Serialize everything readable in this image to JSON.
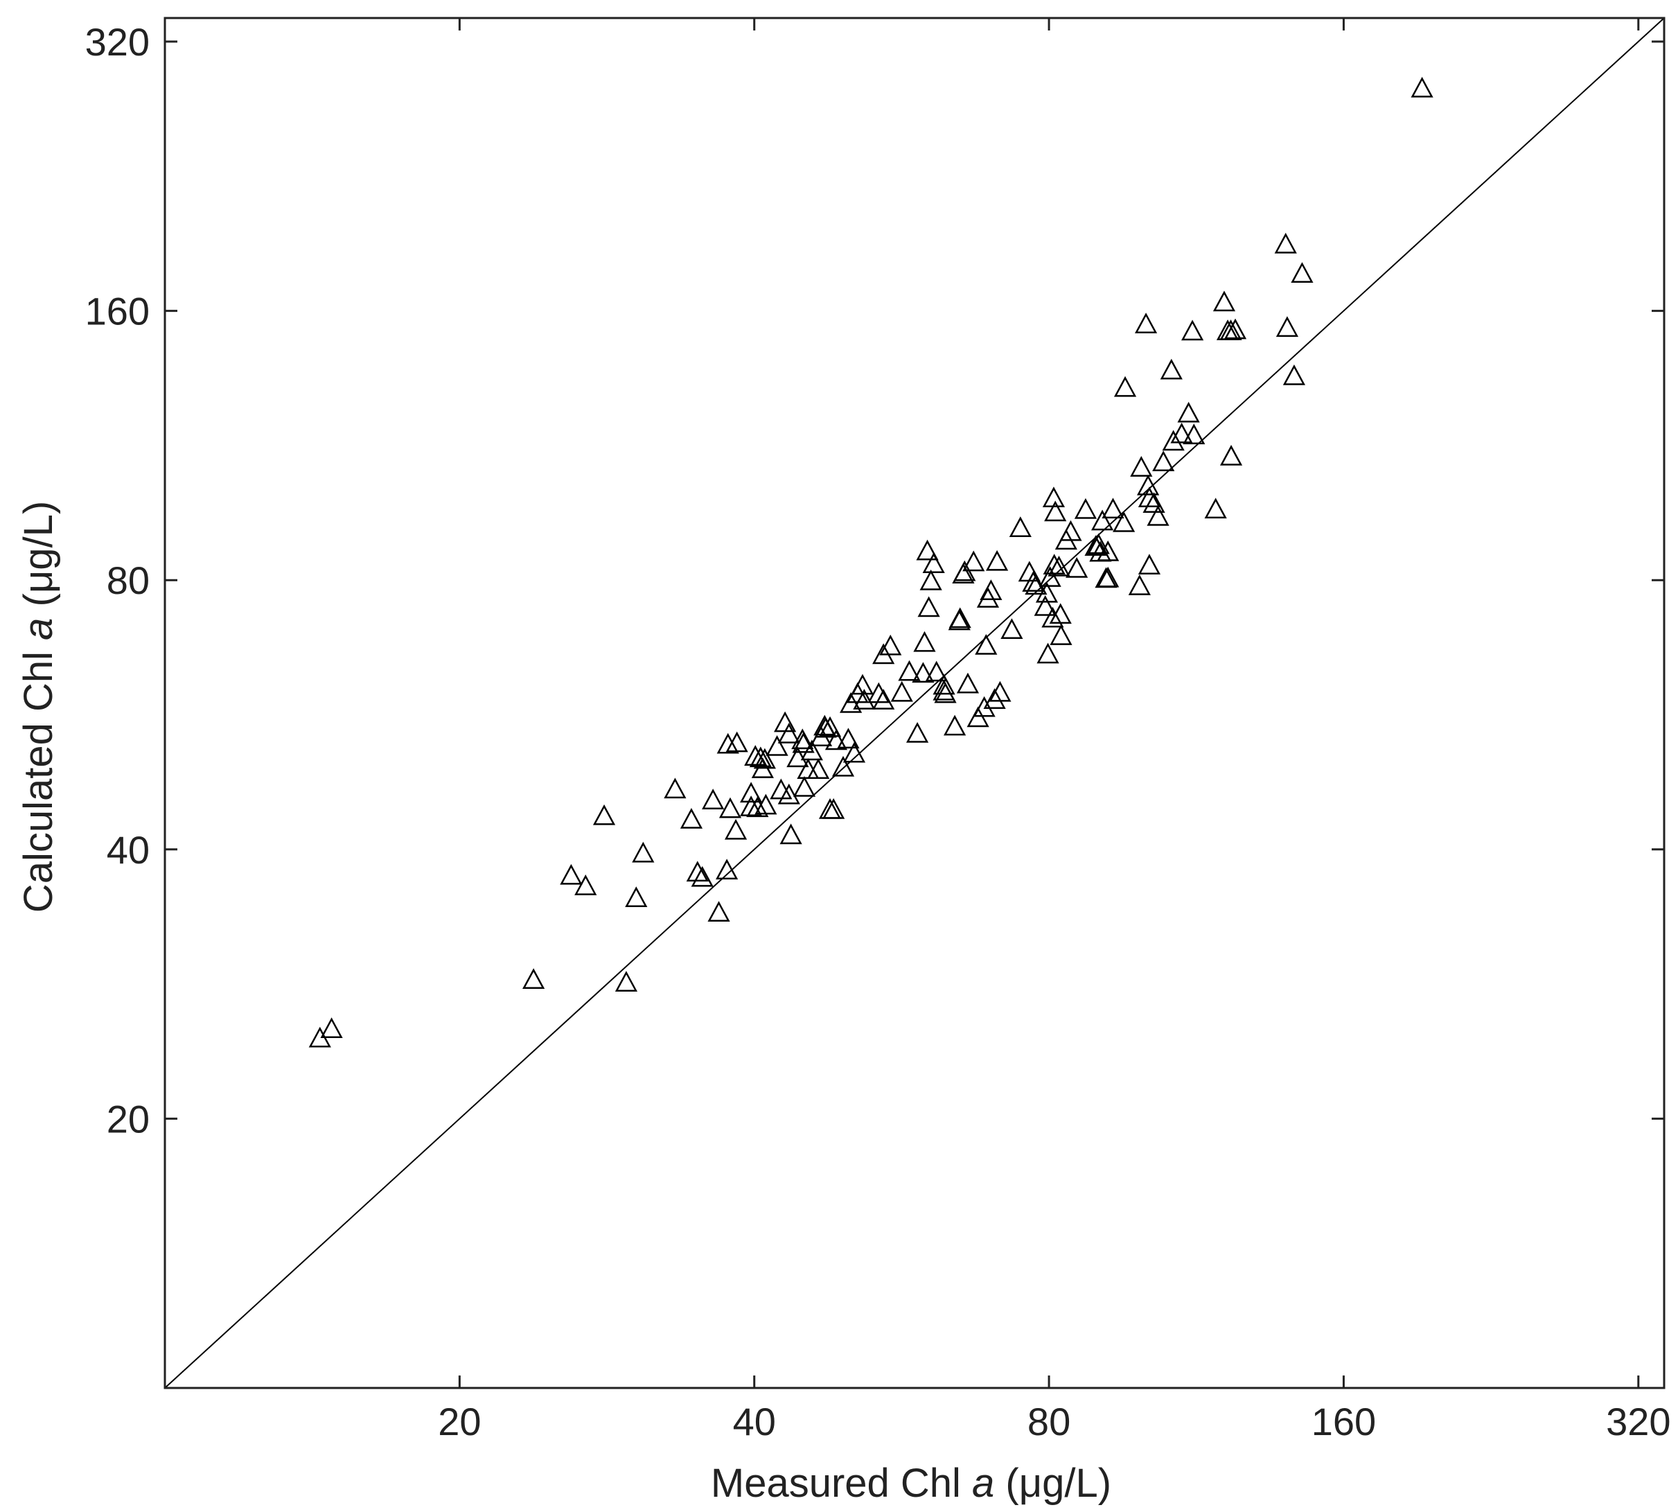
{
  "chart_data": {
    "type": "scatter",
    "xlabel_main": "Measured Chl ",
    "xlabel_italic": "a",
    "xlabel_unit": " (μg/L)",
    "ylabel_main": "Calculated Chl ",
    "ylabel_italic": "a",
    "ylabel_unit": " (μg/L)",
    "x_scale": "log2",
    "y_scale": "log2",
    "xlim": [
      10,
      340
    ],
    "ylim": [
      10,
      340
    ],
    "xticks": [
      20,
      40,
      80,
      160,
      320
    ],
    "xtick_labels": [
      "20",
      "40",
      "80",
      "160",
      "320"
    ],
    "yticks": [
      20,
      40,
      80,
      160,
      320
    ],
    "ytick_labels": [
      "20",
      "40",
      "80",
      "160",
      "320"
    ],
    "reference_line": "1:1",
    "grid": false,
    "legend": "none",
    "marker": "open-triangle",
    "marker_color": "#000000",
    "series": [
      {
        "points": [
          [
            14.4,
            24.6
          ],
          [
            14.8,
            25.2
          ],
          [
            23.8,
            28.6
          ],
          [
            26.0,
            37.4
          ],
          [
            26.9,
            36.4
          ],
          [
            28.1,
            43.6
          ],
          [
            29.6,
            28.4
          ],
          [
            30.3,
            35.3
          ],
          [
            30.8,
            39.6
          ],
          [
            33.2,
            46.7
          ],
          [
            34.5,
            43.2
          ],
          [
            35.0,
            37.7
          ],
          [
            35.4,
            37.2
          ],
          [
            36.3,
            45.4
          ],
          [
            36.8,
            34.0
          ],
          [
            37.5,
            37.9
          ],
          [
            37.6,
            52.4
          ],
          [
            37.8,
            44.4
          ],
          [
            38.4,
            52.6
          ],
          [
            38.3,
            42.0
          ],
          [
            39.7,
            46.2
          ],
          [
            39.7,
            44.6
          ],
          [
            40.1,
            50.8
          ],
          [
            40.3,
            44.5
          ],
          [
            40.6,
            50.6
          ],
          [
            40.8,
            49.2
          ],
          [
            41.1,
            44.8
          ],
          [
            41.0,
            50.4
          ],
          [
            42.2,
            52.1
          ],
          [
            42.6,
            46.6
          ],
          [
            43.0,
            55.4
          ],
          [
            43.4,
            46.0
          ],
          [
            43.4,
            53.8
          ],
          [
            43.6,
            41.5
          ],
          [
            44.3,
            50.6
          ],
          [
            44.8,
            53.0
          ],
          [
            44.9,
            52.5
          ],
          [
            45.0,
            46.9
          ],
          [
            45.4,
            49.1
          ],
          [
            45.8,
            51.5
          ],
          [
            46.5,
            49.1
          ],
          [
            46.8,
            53.4
          ],
          [
            47.2,
            54.9
          ],
          [
            47.3,
            54.6
          ],
          [
            47.8,
            54.7
          ],
          [
            47.8,
            44.3
          ],
          [
            48.2,
            44.3
          ],
          [
            48.5,
            52.9
          ],
          [
            49.3,
            49.4
          ],
          [
            49.9,
            53.1
          ],
          [
            50.2,
            58.2
          ],
          [
            50.6,
            51.2
          ],
          [
            51.0,
            59.7
          ],
          [
            51.6,
            61.0
          ],
          [
            51.8,
            58.7
          ],
          [
            53.6,
            59.7
          ],
          [
            54.2,
            58.7
          ],
          [
            54.2,
            66.0
          ],
          [
            55.1,
            67.5
          ],
          [
            56.6,
            59.9
          ],
          [
            57.6,
            63.2
          ],
          [
            58.7,
            53.9
          ],
          [
            59.5,
            62.9
          ],
          [
            59.7,
            68.1
          ],
          [
            60.3,
            74.5
          ],
          [
            60.1,
            86.2
          ],
          [
            60.6,
            79.8
          ],
          [
            61.0,
            83.4
          ],
          [
            61.4,
            63.1
          ],
          [
            62.5,
            60.1
          ],
          [
            62.5,
            61.0
          ],
          [
            62.7,
            59.7
          ],
          [
            64.1,
            54.9
          ],
          [
            64.8,
            72.0
          ],
          [
            64.9,
            72.4
          ],
          [
            65.4,
            81.2
          ],
          [
            65.6,
            81.7
          ],
          [
            66.1,
            61.2
          ],
          [
            67.0,
            83.8
          ],
          [
            67.7,
            56.1
          ],
          [
            68.7,
            57.6
          ],
          [
            69.0,
            67.6
          ],
          [
            69.3,
            76.3
          ],
          [
            69.8,
            77.8
          ],
          [
            70.4,
            58.8
          ],
          [
            70.8,
            83.9
          ],
          [
            71.3,
            59.9
          ],
          [
            73.3,
            70.4
          ],
          [
            74.8,
            91.5
          ],
          [
            76.4,
            81.6
          ],
          [
            77.1,
            79.5
          ],
          [
            77.6,
            78.9
          ],
          [
            79.3,
            74.7
          ],
          [
            79.6,
            77.3
          ],
          [
            79.8,
            66.1
          ],
          [
            80.2,
            80.5
          ],
          [
            80.7,
            72.5
          ],
          [
            80.9,
            98.8
          ],
          [
            81.0,
            83.1
          ],
          [
            81.2,
            95.3
          ],
          [
            81.9,
            82.7
          ],
          [
            82.3,
            69.3
          ],
          [
            82.2,
            73.2
          ],
          [
            83.3,
            88.6
          ],
          [
            84.2,
            90.6
          ],
          [
            85.4,
            82.4
          ],
          [
            87.2,
            95.9
          ],
          [
            89.3,
            87.2
          ],
          [
            89.9,
            87.6
          ],
          [
            90.3,
            85.9
          ],
          [
            90.7,
            93.1
          ],
          [
            91.5,
            80.3
          ],
          [
            91.9,
            80.4
          ],
          [
            91.9,
            86.0
          ],
          [
            93.0,
            96.0
          ],
          [
            95.4,
            92.7
          ],
          [
            95.7,
            131.3
          ],
          [
            99.0,
            78.8
          ],
          [
            99.4,
            106.9
          ],
          [
            100.5,
            154.6
          ],
          [
            101.0,
            101.9
          ],
          [
            101.3,
            98.8
          ],
          [
            101.3,
            83.1
          ],
          [
            102.4,
            97.4
          ],
          [
            103.4,
            94.2
          ],
          [
            104.7,
            108.4
          ],
          [
            106.7,
            137.3
          ],
          [
            107.2,
            114.3
          ],
          [
            109.3,
            116.5
          ],
          [
            111.1,
            122.9
          ],
          [
            112.1,
            151.8
          ],
          [
            112.5,
            116.2
          ],
          [
            118.4,
            96.0
          ],
          [
            120.8,
            163.6
          ],
          [
            121.8,
            151.9
          ],
          [
            122.7,
            151.9
          ],
          [
            122.8,
            110.0
          ],
          [
            124.0,
            152.3
          ],
          [
            139.6,
            189.9
          ],
          [
            140.1,
            153.2
          ],
          [
            142.4,
            135.3
          ],
          [
            145.1,
            176.1
          ],
          [
            192.4,
            283.7
          ]
        ]
      }
    ]
  }
}
